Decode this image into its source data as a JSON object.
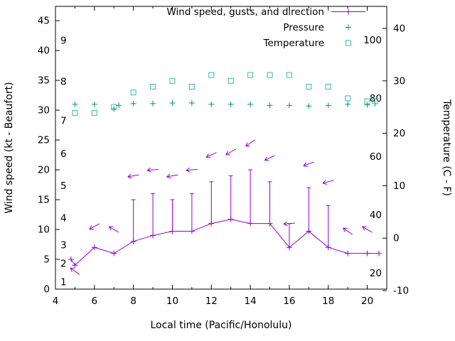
{
  "chart_data": {
    "type": "line",
    "xlabel": "Local time (Pacific/Honolulu)",
    "ylabel_left": "Wind speed (kt - Beaufort)",
    "ylabel_right": "Temperature (C - F)",
    "x_range": [
      4,
      21
    ],
    "x_ticks": [
      4,
      6,
      8,
      10,
      12,
      14,
      16,
      18,
      20
    ],
    "x_minor_ticks": [
      5,
      7,
      9,
      11,
      13,
      15,
      17,
      19
    ],
    "left_axis": {
      "range_kt": [
        0,
        47.4
      ],
      "ticks": [
        0,
        5,
        10,
        15,
        20,
        25,
        30,
        35,
        40,
        45
      ],
      "beaufort_labels": [
        {
          "label": "1",
          "kt": 1.2
        },
        {
          "label": "2",
          "kt": 4.3
        },
        {
          "label": "3",
          "kt": 7.4
        },
        {
          "label": "4",
          "kt": 11.9
        },
        {
          "label": "5",
          "kt": 17.3
        },
        {
          "label": "6",
          "kt": 22.7
        },
        {
          "label": "7",
          "kt": 28.2
        },
        {
          "label": "8",
          "kt": 34.8
        },
        {
          "label": "9",
          "kt": 41.7
        }
      ]
    },
    "right_axis": {
      "ticks_c": [
        -10,
        0,
        10,
        20,
        30,
        40
      ],
      "fahrenheit_labels": [
        20,
        40,
        60,
        80,
        100
      ]
    },
    "legend": [
      {
        "label": "Wind speed, gusts, and direction",
        "series": "wind"
      },
      {
        "label": "Pressure",
        "series": "pressure"
      },
      {
        "label": "Temperature",
        "series": "temperature"
      }
    ],
    "series": {
      "wind": {
        "color": "#9400d3",
        "x": [
          4.8,
          5,
          6,
          7,
          8,
          9,
          10,
          11,
          12,
          13,
          14,
          15,
          16,
          17,
          18,
          19,
          20,
          20.6
        ],
        "speed_kt": [
          5,
          4,
          7,
          6,
          8,
          9,
          9.7,
          9.7,
          11,
          11.7,
          11,
          11,
          7,
          9.7,
          7,
          6,
          6,
          6
        ],
        "gust_kt": [
          null,
          null,
          null,
          null,
          15,
          16,
          15,
          16,
          18,
          19,
          20,
          18,
          11,
          17,
          14,
          null,
          null,
          null
        ],
        "direction_arrows": [
          {
            "x": 5,
            "kt": 3,
            "angle_deg": 145
          },
          {
            "x": 6,
            "kt": 10.5,
            "angle_deg": 210
          },
          {
            "x": 7,
            "kt": 10,
            "angle_deg": 150
          },
          {
            "x": 8,
            "kt": 19,
            "angle_deg": 190
          },
          {
            "x": 9,
            "kt": 20,
            "angle_deg": 185
          },
          {
            "x": 10,
            "kt": 19,
            "angle_deg": 190
          },
          {
            "x": 11,
            "kt": 20,
            "angle_deg": 185
          },
          {
            "x": 12,
            "kt": 22.5,
            "angle_deg": 205
          },
          {
            "x": 13,
            "kt": 23,
            "angle_deg": 210
          },
          {
            "x": 14,
            "kt": 24.5,
            "angle_deg": 215
          },
          {
            "x": 15,
            "kt": 22,
            "angle_deg": 205
          },
          {
            "x": 16,
            "kt": 11,
            "angle_deg": 185
          },
          {
            "x": 17,
            "kt": 21,
            "angle_deg": 200
          },
          {
            "x": 18,
            "kt": 18,
            "angle_deg": 195
          },
          {
            "x": 19,
            "kt": 9.7,
            "angle_deg": 145
          },
          {
            "x": 20,
            "kt": 10,
            "angle_deg": 150
          }
        ]
      },
      "pressure": {
        "color": "#009270",
        "x": [
          5,
          6,
          7,
          7.25,
          8,
          9,
          10,
          11,
          12,
          13,
          14,
          15,
          16,
          17,
          18,
          19,
          20,
          20.4
        ],
        "value_left_axis_kt": [
          31,
          31,
          30.2,
          30.8,
          31.1,
          31.1,
          31.2,
          31.2,
          31,
          31,
          31,
          30.8,
          30.8,
          30.7,
          30.8,
          31,
          30.9,
          31.1
        ]
      },
      "temperature": {
        "color": "#3cb4b4",
        "x": [
          5,
          6,
          7,
          8,
          9,
          10,
          11,
          12,
          13,
          14,
          15,
          16,
          17,
          18,
          19,
          20,
          20.4
        ],
        "value_f": [
          75,
          75,
          77,
          82,
          84,
          86,
          84,
          88,
          86,
          88,
          88,
          88,
          84,
          84,
          80,
          79,
          79
        ]
      }
    }
  }
}
